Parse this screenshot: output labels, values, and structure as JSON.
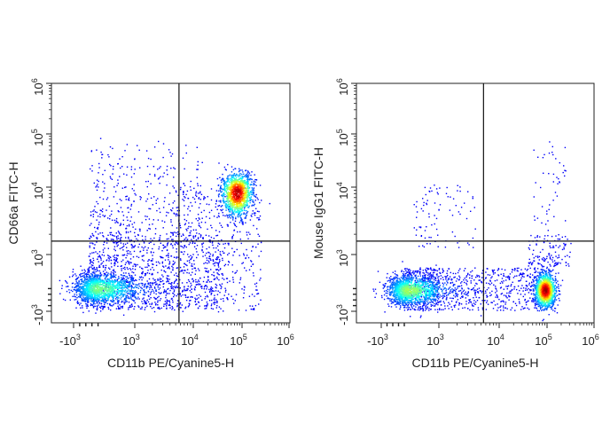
{
  "chart_data": [
    {
      "type": "scatter",
      "subtype": "flow-cytometry-density-dot-plot",
      "xlabel": "CD11b PE/Cyanine5-H",
      "ylabel": "CD66a FITC-H",
      "x_scale": "biexponential",
      "y_scale": "biexponential",
      "xlim": [
        -2000,
        1000000
      ],
      "ylim": [
        -1500,
        1000000
      ],
      "x_ticks": [
        {
          "value": -1000,
          "base": "-10",
          "exp": "3"
        },
        {
          "value": 1000,
          "base": "10",
          "exp": "3"
        },
        {
          "value": 10000,
          "base": "10",
          "exp": "4"
        },
        {
          "value": 100000,
          "base": "10",
          "exp": "5"
        },
        {
          "value": 1000000,
          "base": "10",
          "exp": "6"
        }
      ],
      "y_ticks": [
        {
          "value": -1000,
          "base": "-10",
          "exp": "3"
        },
        {
          "value": 1000,
          "base": "10",
          "exp": "3"
        },
        {
          "value": 10000,
          "base": "10",
          "exp": "4"
        },
        {
          "value": 100000,
          "base": "10",
          "exp": "5"
        },
        {
          "value": 1000000,
          "base": "10",
          "exp": "6"
        }
      ],
      "quadrant_gate": {
        "x": 5700,
        "y": 1580
      },
      "populations": [
        {
          "center_x": -220,
          "center_y": -190,
          "count": 1500,
          "peak_density": 0.45
        },
        {
          "center_x": 78000,
          "center_y": 8300,
          "count": 1200,
          "peak_density": 1.0
        }
      ],
      "colormap": "jet",
      "grid": false,
      "legend": "none"
    },
    {
      "type": "scatter",
      "subtype": "flow-cytometry-density-dot-plot",
      "xlabel": "CD11b PE/Cyanine5-H",
      "ylabel": "Mouse IgG1 FITC-H",
      "x_scale": "biexponential",
      "y_scale": "biexponential",
      "xlim": [
        -2000,
        1000000
      ],
      "ylim": [
        -1500,
        1000000
      ],
      "x_ticks": [
        {
          "value": -1000,
          "base": "-10",
          "exp": "3"
        },
        {
          "value": 1000,
          "base": "10",
          "exp": "3"
        },
        {
          "value": 10000,
          "base": "10",
          "exp": "4"
        },
        {
          "value": 100000,
          "base": "10",
          "exp": "5"
        },
        {
          "value": 1000000,
          "base": "10",
          "exp": "6"
        }
      ],
      "y_ticks": [
        {
          "value": -1000,
          "base": "-10",
          "exp": "3"
        },
        {
          "value": 1000,
          "base": "10",
          "exp": "3"
        },
        {
          "value": 10000,
          "base": "10",
          "exp": "4"
        },
        {
          "value": 100000,
          "base": "10",
          "exp": "5"
        },
        {
          "value": 1000000,
          "base": "10",
          "exp": "6"
        }
      ],
      "quadrant_gate": {
        "x": 5500,
        "y": 1580
      },
      "populations": [
        {
          "center_x": -80,
          "center_y": -250,
          "count": 1400,
          "peak_density": 0.5
        },
        {
          "center_x": 90000,
          "center_y": -250,
          "count": 1300,
          "peak_density": 1.0
        }
      ],
      "colormap": "jet",
      "grid": false,
      "legend": "none"
    }
  ]
}
